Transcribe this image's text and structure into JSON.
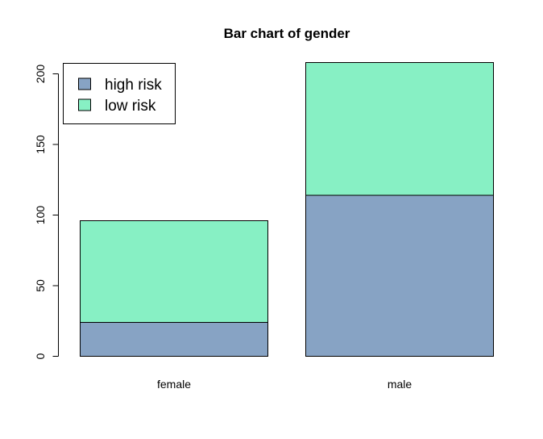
{
  "chart_data": {
    "type": "bar",
    "stacked": true,
    "title": "Bar chart of gender",
    "xlabel": "",
    "ylabel": "",
    "categories": [
      "female",
      "male"
    ],
    "series": [
      {
        "name": "high risk",
        "values": [
          24,
          114
        ],
        "color": "#87A3C4"
      },
      {
        "name": "low risk",
        "values": [
          72,
          94
        ],
        "color": "#87F0C4"
      }
    ],
    "yticks": [
      0,
      50,
      100,
      150,
      200
    ],
    "ylim": [
      0,
      208
    ],
    "grid": false,
    "legend_position": "top-left"
  }
}
